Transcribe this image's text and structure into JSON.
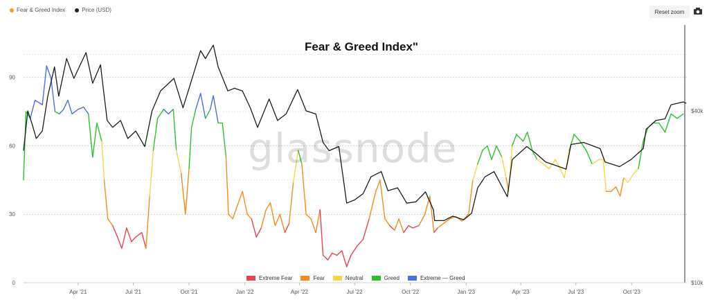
{
  "top_legend": {
    "fgi_label": "Fear & Greed Index",
    "price_label": "Price (USD)",
    "fgi_color": "#f39c12",
    "price_color": "#222222"
  },
  "toolbar": {
    "reset_label": "Reset zoom",
    "camera_icon": "camera-icon"
  },
  "watermark": "glassnode",
  "chart_data": {
    "type": "line",
    "title": "Fear & Greed Index\"",
    "x_ticks": [
      "Apr '21",
      "Jul '21",
      "Oct '21",
      "Jan '22",
      "Apr '22",
      "Jul '22",
      "Oct '22",
      "Jan '23",
      "Apr '23",
      "Jul '23",
      "Oct '23"
    ],
    "y_left_ticks": [
      "0",
      "30",
      "60",
      "90"
    ],
    "y_left_range": [
      0,
      113
    ],
    "y_right_ticks": [
      "$10k",
      "$40k"
    ],
    "y_right_scale": "log",
    "y_right_range_usd": [
      10000,
      80000
    ],
    "zones": [
      {
        "name": "Extreme Fear",
        "color": "#e8434c",
        "range": [
          0,
          25
        ]
      },
      {
        "name": "Fear",
        "color": "#f28c1e",
        "range": [
          25,
          45
        ]
      },
      {
        "name": "Neutral",
        "color": "#f2d64b",
        "range": [
          45,
          55
        ]
      },
      {
        "name": "Greed",
        "color": "#2ec12e",
        "range": [
          55,
          75
        ]
      },
      {
        "name": "Extreme — Greed",
        "color": "#4a6fe0",
        "range": [
          75,
          100
        ]
      }
    ],
    "x_start": "2021-01-01",
    "x_end": "2023-12-31",
    "fgi_series": {
      "name": "Fear & Greed Index",
      "points": [
        [
          "2021-01-01",
          45
        ],
        [
          "2021-01-05",
          75
        ],
        [
          "2021-01-12",
          72
        ],
        [
          "2021-01-20",
          80
        ],
        [
          "2021-02-01",
          78
        ],
        [
          "2021-02-08",
          95
        ],
        [
          "2021-02-15",
          90
        ],
        [
          "2021-02-22",
          75
        ],
        [
          "2021-03-01",
          74
        ],
        [
          "2021-03-08",
          76
        ],
        [
          "2021-03-15",
          80
        ],
        [
          "2021-03-22",
          74
        ],
        [
          "2021-04-01",
          76
        ],
        [
          "2021-04-10",
          77
        ],
        [
          "2021-04-18",
          74
        ],
        [
          "2021-04-25",
          55
        ],
        [
          "2021-05-02",
          70
        ],
        [
          "2021-05-10",
          62
        ],
        [
          "2021-05-14",
          45
        ],
        [
          "2021-05-20",
          28
        ],
        [
          "2021-05-28",
          25
        ],
        [
          "2021-06-05",
          20
        ],
        [
          "2021-06-12",
          15
        ],
        [
          "2021-06-20",
          24
        ],
        [
          "2021-06-28",
          18
        ],
        [
          "2021-07-05",
          20
        ],
        [
          "2021-07-15",
          22
        ],
        [
          "2021-07-22",
          15
        ],
        [
          "2021-07-28",
          38
        ],
        [
          "2021-08-03",
          58
        ],
        [
          "2021-08-10",
          72
        ],
        [
          "2021-08-20",
          76
        ],
        [
          "2021-08-28",
          74
        ],
        [
          "2021-09-05",
          76
        ],
        [
          "2021-09-10",
          58
        ],
        [
          "2021-09-18",
          48
        ],
        [
          "2021-09-25",
          30
        ],
        [
          "2021-10-01",
          50
        ],
        [
          "2021-10-05",
          68
        ],
        [
          "2021-10-12",
          76
        ],
        [
          "2021-10-20",
          83
        ],
        [
          "2021-10-28",
          72
        ],
        [
          "2021-11-05",
          76
        ],
        [
          "2021-11-10",
          82
        ],
        [
          "2021-11-18",
          70
        ],
        [
          "2021-11-25",
          70
        ],
        [
          "2021-12-01",
          55
        ],
        [
          "2021-12-05",
          30
        ],
        [
          "2021-12-12",
          28
        ],
        [
          "2021-12-20",
          34
        ],
        [
          "2021-12-28",
          40
        ],
        [
          "2022-01-05",
          30
        ],
        [
          "2022-01-12",
          28
        ],
        [
          "2022-01-20",
          20
        ],
        [
          "2022-01-28",
          24
        ],
        [
          "2022-02-05",
          32
        ],
        [
          "2022-02-12",
          35
        ],
        [
          "2022-02-20",
          25
        ],
        [
          "2022-02-28",
          30
        ],
        [
          "2022-03-08",
          22
        ],
        [
          "2022-03-15",
          26
        ],
        [
          "2022-03-22",
          44
        ],
        [
          "2022-03-30",
          58
        ],
        [
          "2022-04-05",
          52
        ],
        [
          "2022-04-12",
          30
        ],
        [
          "2022-04-20",
          28
        ],
        [
          "2022-04-28",
          22
        ],
        [
          "2022-05-05",
          32
        ],
        [
          "2022-05-10",
          12
        ],
        [
          "2022-05-18",
          10
        ],
        [
          "2022-05-25",
          13
        ],
        [
          "2022-06-02",
          12
        ],
        [
          "2022-06-10",
          14
        ],
        [
          "2022-06-18",
          7
        ],
        [
          "2022-06-25",
          12
        ],
        [
          "2022-07-05",
          16
        ],
        [
          "2022-07-15",
          19
        ],
        [
          "2022-07-25",
          28
        ],
        [
          "2022-08-05",
          40
        ],
        [
          "2022-08-12",
          45
        ],
        [
          "2022-08-20",
          28
        ],
        [
          "2022-08-28",
          25
        ],
        [
          "2022-09-05",
          23
        ],
        [
          "2022-09-12",
          28
        ],
        [
          "2022-09-20",
          22
        ],
        [
          "2022-09-28",
          25
        ],
        [
          "2022-10-05",
          24
        ],
        [
          "2022-10-15",
          25
        ],
        [
          "2022-10-25",
          30
        ],
        [
          "2022-11-02",
          38
        ],
        [
          "2022-11-09",
          22
        ],
        [
          "2022-11-15",
          24
        ],
        [
          "2022-11-25",
          26
        ],
        [
          "2022-12-05",
          28
        ],
        [
          "2022-12-15",
          29
        ],
        [
          "2022-12-25",
          27
        ],
        [
          "2023-01-05",
          30
        ],
        [
          "2023-01-12",
          45
        ],
        [
          "2023-01-20",
          52
        ],
        [
          "2023-01-28",
          58
        ],
        [
          "2023-02-05",
          60
        ],
        [
          "2023-02-12",
          54
        ],
        [
          "2023-02-20",
          60
        ],
        [
          "2023-03-01",
          55
        ],
        [
          "2023-03-08",
          46
        ],
        [
          "2023-03-12",
          40
        ],
        [
          "2023-03-18",
          60
        ],
        [
          "2023-03-25",
          65
        ],
        [
          "2023-04-05",
          62
        ],
        [
          "2023-04-12",
          66
        ],
        [
          "2023-04-20",
          58
        ],
        [
          "2023-04-28",
          54
        ],
        [
          "2023-05-08",
          52
        ],
        [
          "2023-05-18",
          50
        ],
        [
          "2023-05-28",
          54
        ],
        [
          "2023-06-05",
          50
        ],
        [
          "2023-06-12",
          46
        ],
        [
          "2023-06-20",
          58
        ],
        [
          "2023-06-28",
          65
        ],
        [
          "2023-07-08",
          62
        ],
        [
          "2023-07-18",
          58
        ],
        [
          "2023-07-28",
          52
        ],
        [
          "2023-08-08",
          54
        ],
        [
          "2023-08-15",
          54
        ],
        [
          "2023-08-20",
          40
        ],
        [
          "2023-08-28",
          40
        ],
        [
          "2023-09-05",
          42
        ],
        [
          "2023-09-12",
          38
        ],
        [
          "2023-09-18",
          46
        ],
        [
          "2023-09-25",
          44
        ],
        [
          "2023-10-05",
          48
        ],
        [
          "2023-10-12",
          50
        ],
        [
          "2023-10-20",
          62
        ],
        [
          "2023-10-28",
          68
        ],
        [
          "2023-11-05",
          70
        ],
        [
          "2023-11-15",
          70
        ],
        [
          "2023-11-25",
          66
        ],
        [
          "2023-12-05",
          74
        ],
        [
          "2023-12-15",
          72
        ],
        [
          "2023-12-25",
          74
        ]
      ]
    },
    "price_series": {
      "name": "Price (USD)",
      "points": [
        [
          "2021-01-01",
          29000
        ],
        [
          "2021-01-08",
          40000
        ],
        [
          "2021-01-15",
          36000
        ],
        [
          "2021-01-22",
          32000
        ],
        [
          "2021-02-01",
          34000
        ],
        [
          "2021-02-10",
          45000
        ],
        [
          "2021-02-21",
          57000
        ],
        [
          "2021-02-28",
          45000
        ],
        [
          "2021-03-13",
          61000
        ],
        [
          "2021-03-25",
          52000
        ],
        [
          "2021-04-14",
          64000
        ],
        [
          "2021-04-25",
          50000
        ],
        [
          "2021-05-08",
          58000
        ],
        [
          "2021-05-12",
          49000
        ],
        [
          "2021-05-19",
          37000
        ],
        [
          "2021-05-28",
          35000
        ],
        [
          "2021-06-10",
          37000
        ],
        [
          "2021-06-22",
          32000
        ],
        [
          "2021-07-05",
          34000
        ],
        [
          "2021-07-20",
          30000
        ],
        [
          "2021-08-01",
          40000
        ],
        [
          "2021-08-15",
          47000
        ],
        [
          "2021-09-06",
          52000
        ],
        [
          "2021-09-21",
          41000
        ],
        [
          "2021-10-01",
          48000
        ],
        [
          "2021-10-20",
          65000
        ],
        [
          "2021-10-28",
          61000
        ],
        [
          "2021-11-10",
          68000
        ],
        [
          "2021-11-18",
          57000
        ],
        [
          "2021-12-04",
          47000
        ],
        [
          "2021-12-15",
          48000
        ],
        [
          "2021-12-28",
          47000
        ],
        [
          "2022-01-10",
          41000
        ],
        [
          "2022-01-22",
          35000
        ],
        [
          "2022-02-10",
          44000
        ],
        [
          "2022-02-24",
          37000
        ],
        [
          "2022-03-10",
          39000
        ],
        [
          "2022-03-29",
          47500
        ],
        [
          "2022-04-12",
          40000
        ],
        [
          "2022-04-28",
          39000
        ],
        [
          "2022-05-10",
          31000
        ],
        [
          "2022-05-20",
          29000
        ],
        [
          "2022-06-05",
          30000
        ],
        [
          "2022-06-18",
          19000
        ],
        [
          "2022-07-01",
          19500
        ],
        [
          "2022-07-15",
          20500
        ],
        [
          "2022-07-28",
          23500
        ],
        [
          "2022-08-14",
          24500
        ],
        [
          "2022-08-25",
          21000
        ],
        [
          "2022-09-10",
          21500
        ],
        [
          "2022-09-25",
          19000
        ],
        [
          "2022-10-10",
          19200
        ],
        [
          "2022-10-26",
          20800
        ],
        [
          "2022-11-08",
          18000
        ],
        [
          "2022-11-10",
          16500
        ],
        [
          "2022-11-25",
          16500
        ],
        [
          "2022-12-10",
          17100
        ],
        [
          "2022-12-28",
          16600
        ],
        [
          "2023-01-10",
          17500
        ],
        [
          "2023-01-20",
          21500
        ],
        [
          "2023-02-01",
          23500
        ],
        [
          "2023-02-16",
          24500
        ],
        [
          "2023-03-10",
          20000
        ],
        [
          "2023-03-18",
          27000
        ],
        [
          "2023-04-11",
          30000
        ],
        [
          "2023-04-25",
          28500
        ],
        [
          "2023-05-12",
          26500
        ],
        [
          "2023-06-15",
          25000
        ],
        [
          "2023-06-23",
          30500
        ],
        [
          "2023-07-14",
          31000
        ],
        [
          "2023-08-10",
          29500
        ],
        [
          "2023-08-18",
          26500
        ],
        [
          "2023-09-11",
          25500
        ],
        [
          "2023-09-30",
          27000
        ],
        [
          "2023-10-20",
          29500
        ],
        [
          "2023-10-25",
          34500
        ],
        [
          "2023-11-10",
          37000
        ],
        [
          "2023-11-25",
          37500
        ],
        [
          "2023-12-05",
          42000
        ],
        [
          "2023-12-25",
          43000
        ],
        [
          "2023-12-30",
          42500
        ]
      ]
    }
  }
}
